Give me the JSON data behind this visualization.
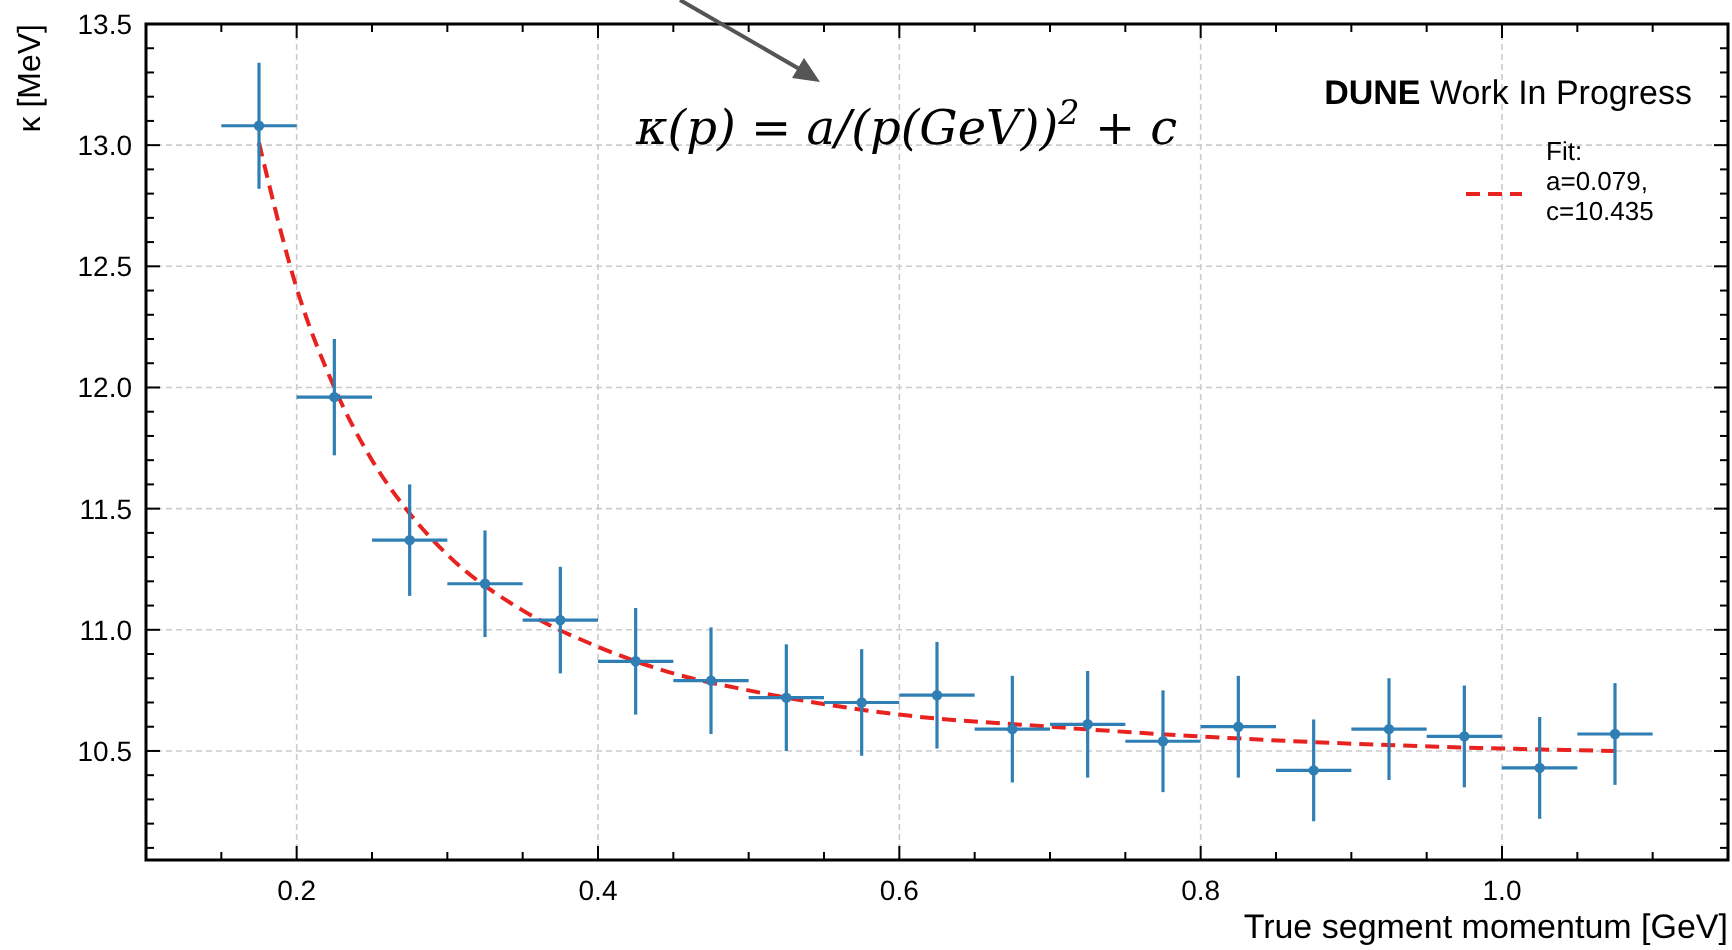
{
  "chart_data": {
    "type": "scatter",
    "xlabel": "True segment momentum [GeV]",
    "ylabel": "κ [MeV]",
    "xlim": [
      0.1,
      1.15
    ],
    "ylim": [
      10.05,
      13.5
    ],
    "xticks": [
      {
        "value": 0.15,
        "label": null
      },
      0.2,
      {
        "value": 0.25,
        "label": null
      },
      {
        "value": 0.3,
        "label": null
      },
      {
        "value": 0.35,
        "label": null
      },
      0.4,
      {
        "value": 0.45,
        "label": null
      },
      {
        "value": 0.5,
        "label": null
      },
      {
        "value": 0.55,
        "label": null
      },
      0.6,
      {
        "value": 0.65,
        "label": null
      },
      {
        "value": 0.7,
        "label": null
      },
      {
        "value": 0.75,
        "label": null
      },
      0.8,
      {
        "value": 0.85,
        "label": null
      },
      {
        "value": 0.9,
        "label": null
      },
      {
        "value": 0.95,
        "label": null
      },
      {
        "value": 1.0,
        "label": "1.0"
      },
      {
        "value": 1.05,
        "label": null
      },
      {
        "value": 1.1,
        "label": null
      }
    ],
    "yticks": [
      {
        "value": 10.1,
        "label": null
      },
      {
        "value": 10.2,
        "label": null
      },
      {
        "value": 10.3,
        "label": null
      },
      {
        "value": 10.4,
        "label": null
      },
      {
        "value": 10.5,
        "label": "10.5"
      },
      {
        "value": 10.6,
        "label": null
      },
      {
        "value": 10.7,
        "label": null
      },
      {
        "value": 10.8,
        "label": null
      },
      {
        "value": 10.9,
        "label": null
      },
      {
        "value": 11,
        "label": "11.0"
      },
      {
        "value": 11.1,
        "label": null
      },
      {
        "value": 11.2,
        "label": null
      },
      {
        "value": 11.3,
        "label": null
      },
      {
        "value": 11.4,
        "label": null
      },
      {
        "value": 11.5,
        "label": "11.5"
      },
      {
        "value": 11.6,
        "label": null
      },
      {
        "value": 11.7,
        "label": null
      },
      {
        "value": 11.8,
        "label": null
      },
      {
        "value": 11.9,
        "label": null
      },
      {
        "value": 12,
        "label": "12.0"
      },
      {
        "value": 12.1,
        "label": null
      },
      {
        "value": 12.2,
        "label": null
      },
      {
        "value": 12.3,
        "label": null
      },
      {
        "value": 12.4,
        "label": null
      },
      {
        "value": 12.5,
        "label": "12.5"
      },
      {
        "value": 12.6,
        "label": null
      },
      {
        "value": 12.7,
        "label": null
      },
      {
        "value": 12.8,
        "label": null
      },
      {
        "value": 12.9,
        "label": null
      },
      {
        "value": 13,
        "label": "13.0"
      },
      {
        "value": 13.1,
        "label": null
      },
      {
        "value": 13.2,
        "label": null
      },
      {
        "value": 13.3,
        "label": null
      },
      {
        "value": 13.4,
        "label": null
      },
      {
        "value": 13.5,
        "label": "13.5"
      }
    ],
    "grid": true,
    "legend": "top right",
    "annotations": [
      "κ(p) = a/(p(GeV))$^{2}$ + c",
      "DUNE Work In Progress"
    ],
    "series": [
      {
        "color": "#2f7fb5",
        "marker": "circle",
        "x": [
          0.175,
          0.225,
          0.275,
          0.325,
          0.375,
          0.425,
          0.475,
          0.525,
          0.575,
          0.625,
          0.675,
          0.725,
          0.775,
          0.825,
          0.875,
          0.925,
          0.975,
          1.025,
          1.075
        ],
        "values": [
          13.08,
          11.96,
          11.37,
          11.19,
          11.04,
          10.87,
          10.79,
          10.72,
          10.7,
          10.73,
          10.59,
          10.61,
          10.54,
          10.6,
          10.42,
          10.59,
          10.56,
          10.43,
          10.57
        ],
        "errors": [
          0.26,
          0.24,
          0.23,
          0.22,
          0.22,
          0.22,
          0.22,
          0.22,
          0.22,
          0.22,
          0.22,
          0.22,
          0.21,
          0.21,
          0.21,
          0.21,
          0.21,
          0.21,
          0.21
        ],
        "xerrors": [
          0.025,
          0.025,
          0.025,
          0.025,
          0.025,
          0.025,
          0.025,
          0.025,
          0.025,
          0.025,
          0.025,
          0.025,
          0.025,
          0.025,
          0.025,
          0.025,
          0.025,
          0.025,
          0.025
        ]
      },
      {
        "type": "line",
        "name": "Fit:\na=0.079,\nc=10.435",
        "color": "#e8221f",
        "line_style": "dashed",
        "marker": "none",
        "x": [
          0.175,
          0.2,
          0.225,
          0.25,
          0.275,
          0.3,
          0.35,
          0.4,
          0.45,
          0.5,
          0.6,
          0.7,
          0.8,
          0.9,
          1.0,
          1.075
        ],
        "values": [
          13.01,
          12.41,
          12.0,
          11.7,
          11.48,
          11.31,
          11.08,
          10.93,
          10.82,
          10.75,
          10.65,
          10.6,
          10.56,
          10.53,
          10.51,
          10.5
        ]
      }
    ]
  }
}
